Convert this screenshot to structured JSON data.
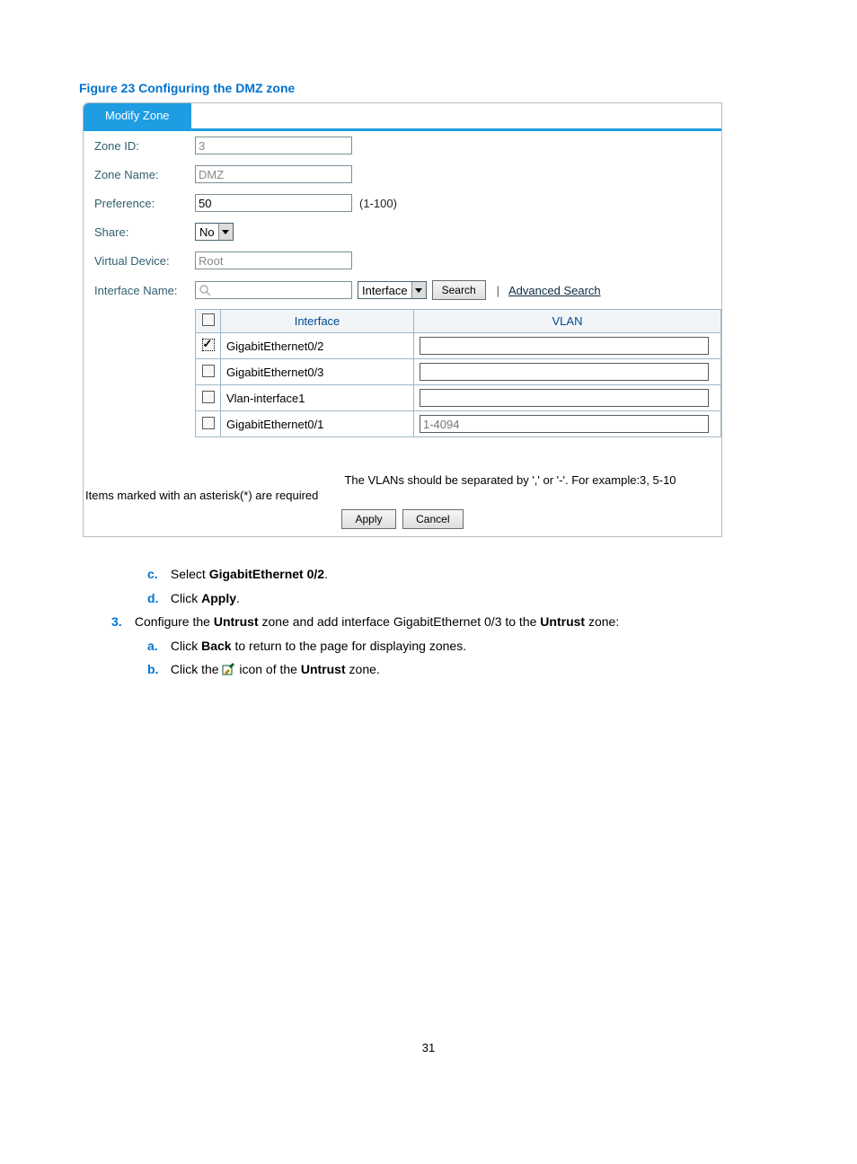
{
  "figure_title": "Figure 23 Configuring the DMZ zone",
  "tab_label": "Modify Zone",
  "fields": {
    "zone_id": {
      "label": "Zone ID:",
      "value": "3"
    },
    "zone_name": {
      "label": "Zone Name:",
      "value": "DMZ"
    },
    "preference": {
      "label": "Preference:",
      "value": "50",
      "hint": "(1-100)"
    },
    "share": {
      "label": "Share:",
      "value": "No"
    },
    "virtual_device": {
      "label": "Virtual Device:",
      "value": "Root"
    },
    "interface_name": {
      "label": "Interface Name:"
    }
  },
  "search": {
    "dropdown": "Interface",
    "button": "Search",
    "advanced": "Advanced Search"
  },
  "table": {
    "headers": {
      "iface": "Interface",
      "vlan": "VLAN"
    },
    "rows": [
      {
        "checked": true,
        "dotted": true,
        "iface": "GigabitEthernet0/2",
        "vlan": ""
      },
      {
        "checked": false,
        "dotted": false,
        "iface": "GigabitEthernet0/3",
        "vlan": ""
      },
      {
        "checked": false,
        "dotted": false,
        "iface": "Vlan-interface1",
        "vlan": ""
      },
      {
        "checked": false,
        "dotted": false,
        "iface": "GigabitEthernet0/1",
        "vlan": "1-4094"
      }
    ]
  },
  "notes": {
    "vlan_sep": "The VLANs should be separated by ',' or '-'. For example:3, 5-10",
    "required": "Items marked with an asterisk(*) are required"
  },
  "buttons": {
    "apply": "Apply",
    "cancel": "Cancel"
  },
  "instructions": {
    "c": "GigabitEthernet 0/2",
    "c_prefix": "Select ",
    "d_prefix": "Click ",
    "d_bold": "Apply",
    "step3_pre": "Configure the ",
    "step3_b1": "Untrust",
    "step3_mid": " zone and add interface GigabitEthernet 0/3 to the ",
    "step3_b2": "Untrust",
    "step3_end": " zone:",
    "a_prefix": "Click ",
    "a_bold": "Back",
    "a_rest": " to return to the page for displaying zones.",
    "b_prefix": "Click the ",
    "b_mid": " icon of the ",
    "b_bold": "Untrust",
    "b_end": " zone."
  },
  "page_number": "31"
}
